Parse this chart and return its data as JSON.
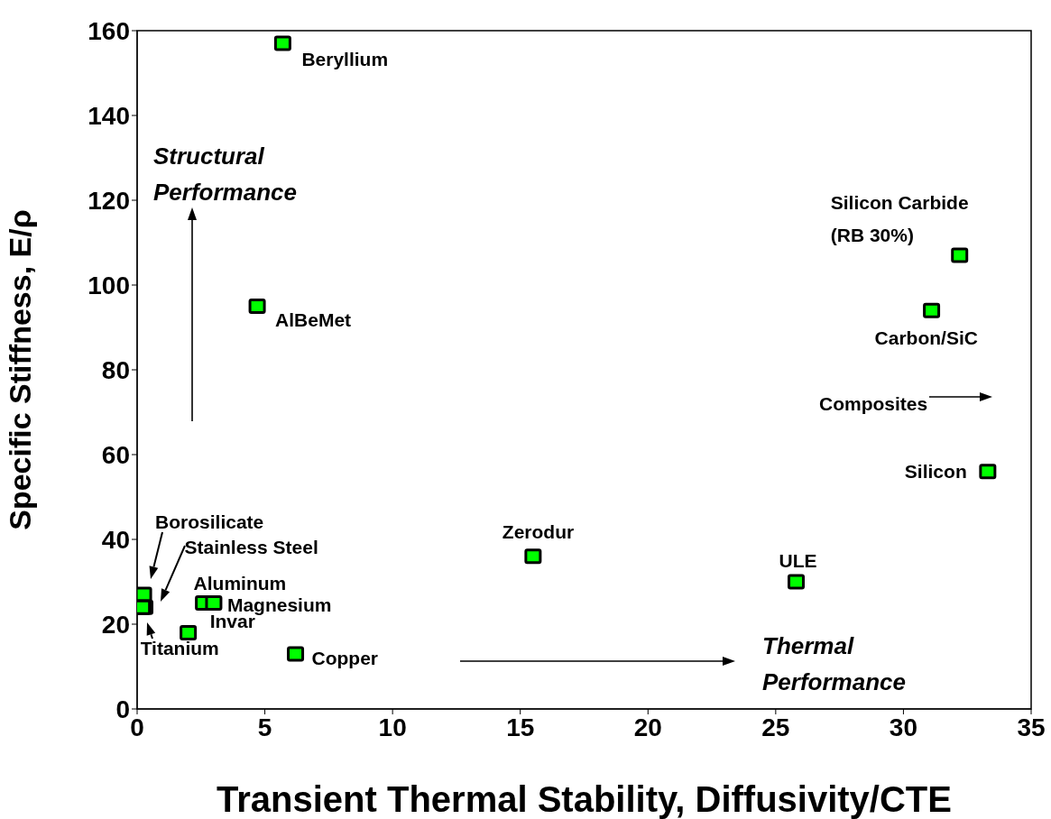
{
  "chart_data": {
    "type": "scatter",
    "xlabel": "Transient Thermal Stability, Diffusivity/CTE",
    "ylabel": "Specific Stiffness, E/ρ",
    "x": [
      5.7,
      4.7,
      32.2,
      31.1,
      33.3,
      15.5,
      25.8,
      0.25,
      0.3,
      0.2,
      2.6,
      3.0,
      2.0,
      6.2
    ],
    "series": [
      {
        "color": "#00ff00",
        "values": [
          157,
          95,
          107,
          94,
          56,
          36,
          30,
          27,
          24,
          24,
          25,
          25,
          18,
          13
        ],
        "value_labels": [
          "Beryllium",
          "AlBeMet",
          "Silicon Carbide (RB 30%)",
          "Carbon/SiC",
          "Silicon",
          "Zerodur",
          "ULE",
          "Borosilicate",
          "Stainless Steel",
          "Titanium",
          "Aluminum",
          "Magnesium",
          "Invar",
          "Copper"
        ]
      }
    ],
    "xlim": [
      0,
      35
    ],
    "xticks": [
      0,
      5,
      10,
      15,
      20,
      25,
      30,
      35
    ],
    "ylim": [
      0,
      160
    ],
    "yticks": [
      0,
      20,
      40,
      60,
      80,
      100,
      120,
      140,
      160
    ],
    "grid": false,
    "legend": false,
    "marker": "square",
    "annotations": [
      "Structural Performance",
      "Thermal Performance",
      "Composites"
    ]
  }
}
